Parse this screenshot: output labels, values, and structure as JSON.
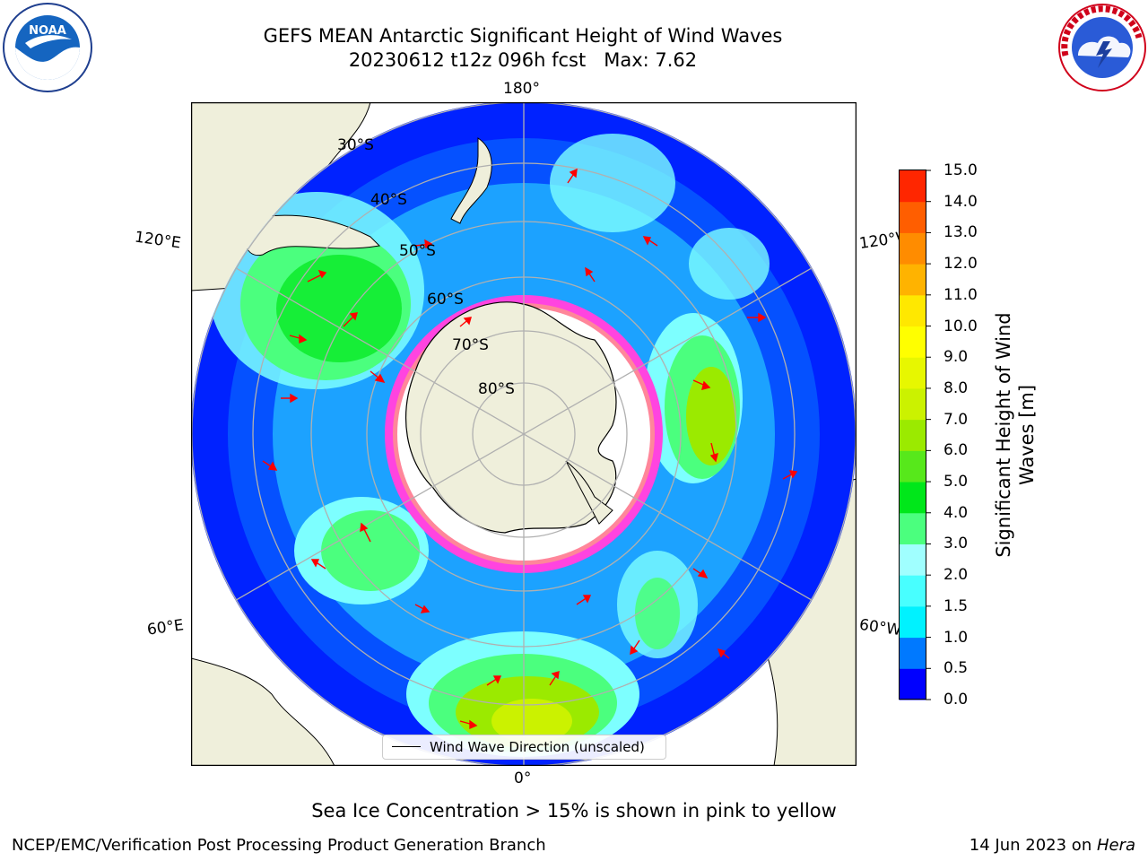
{
  "header": {
    "title_line1": "GEFS MEAN Antarctic Significant Height of Wind Waves",
    "title_line2": "20230612 t12z 096h fcst   Max: 7.62"
  },
  "logos": {
    "left": {
      "name": "noaa-logo",
      "text": "NOAA"
    },
    "right": {
      "name": "national-weather-service-logo",
      "text": "NATIONAL WEATHER SERVICE"
    }
  },
  "map": {
    "projection": "south-polar-stereographic",
    "longitude_labels": {
      "top": "180°",
      "bottom": "0°",
      "upper_left": "120°E",
      "upper_right": "120°W",
      "lower_left": "60°E",
      "lower_right": "60°W"
    },
    "latitude_labels": [
      "30°S",
      "40°S",
      "50°S",
      "60°S",
      "70°S",
      "80°S"
    ],
    "legend": "Wind Wave Direction (unscaled)",
    "colors": {
      "land": "#efefdb",
      "ice_shelf": "#ffffff",
      "arrows": "#ff0000",
      "gridlines": "#b0b0b0"
    }
  },
  "colorbar": {
    "label_line1": "Significant Height of Wind",
    "label_line2": "Waves [m]",
    "ticks": [
      "0.0",
      "0.5",
      "1.0",
      "1.5",
      "2.0",
      "3.0",
      "4.0",
      "5.0",
      "6.0",
      "7.0",
      "8.0",
      "9.0",
      "10.0",
      "11.0",
      "12.0",
      "13.0",
      "14.0",
      "15.0"
    ],
    "colors": [
      "#0000ff",
      "#0079ff",
      "#00f2ff",
      "#48ffff",
      "#a0ffff",
      "#4bff7e",
      "#00e71a",
      "#57e81b",
      "#9bea00",
      "#cbf200",
      "#e7f700",
      "#ffff00",
      "#ffe800",
      "#ffb300",
      "#ff8c00",
      "#ff5e00",
      "#ff2600"
    ]
  },
  "captions": {
    "sea_ice": "Sea Ice Concentration > 15% is shown in pink to yellow"
  },
  "footer": {
    "left": "NCEP/EMC/Verification Post Processing Product Generation Branch",
    "right_date": "14 Jun 2023 on ",
    "right_machine": "Hera"
  }
}
